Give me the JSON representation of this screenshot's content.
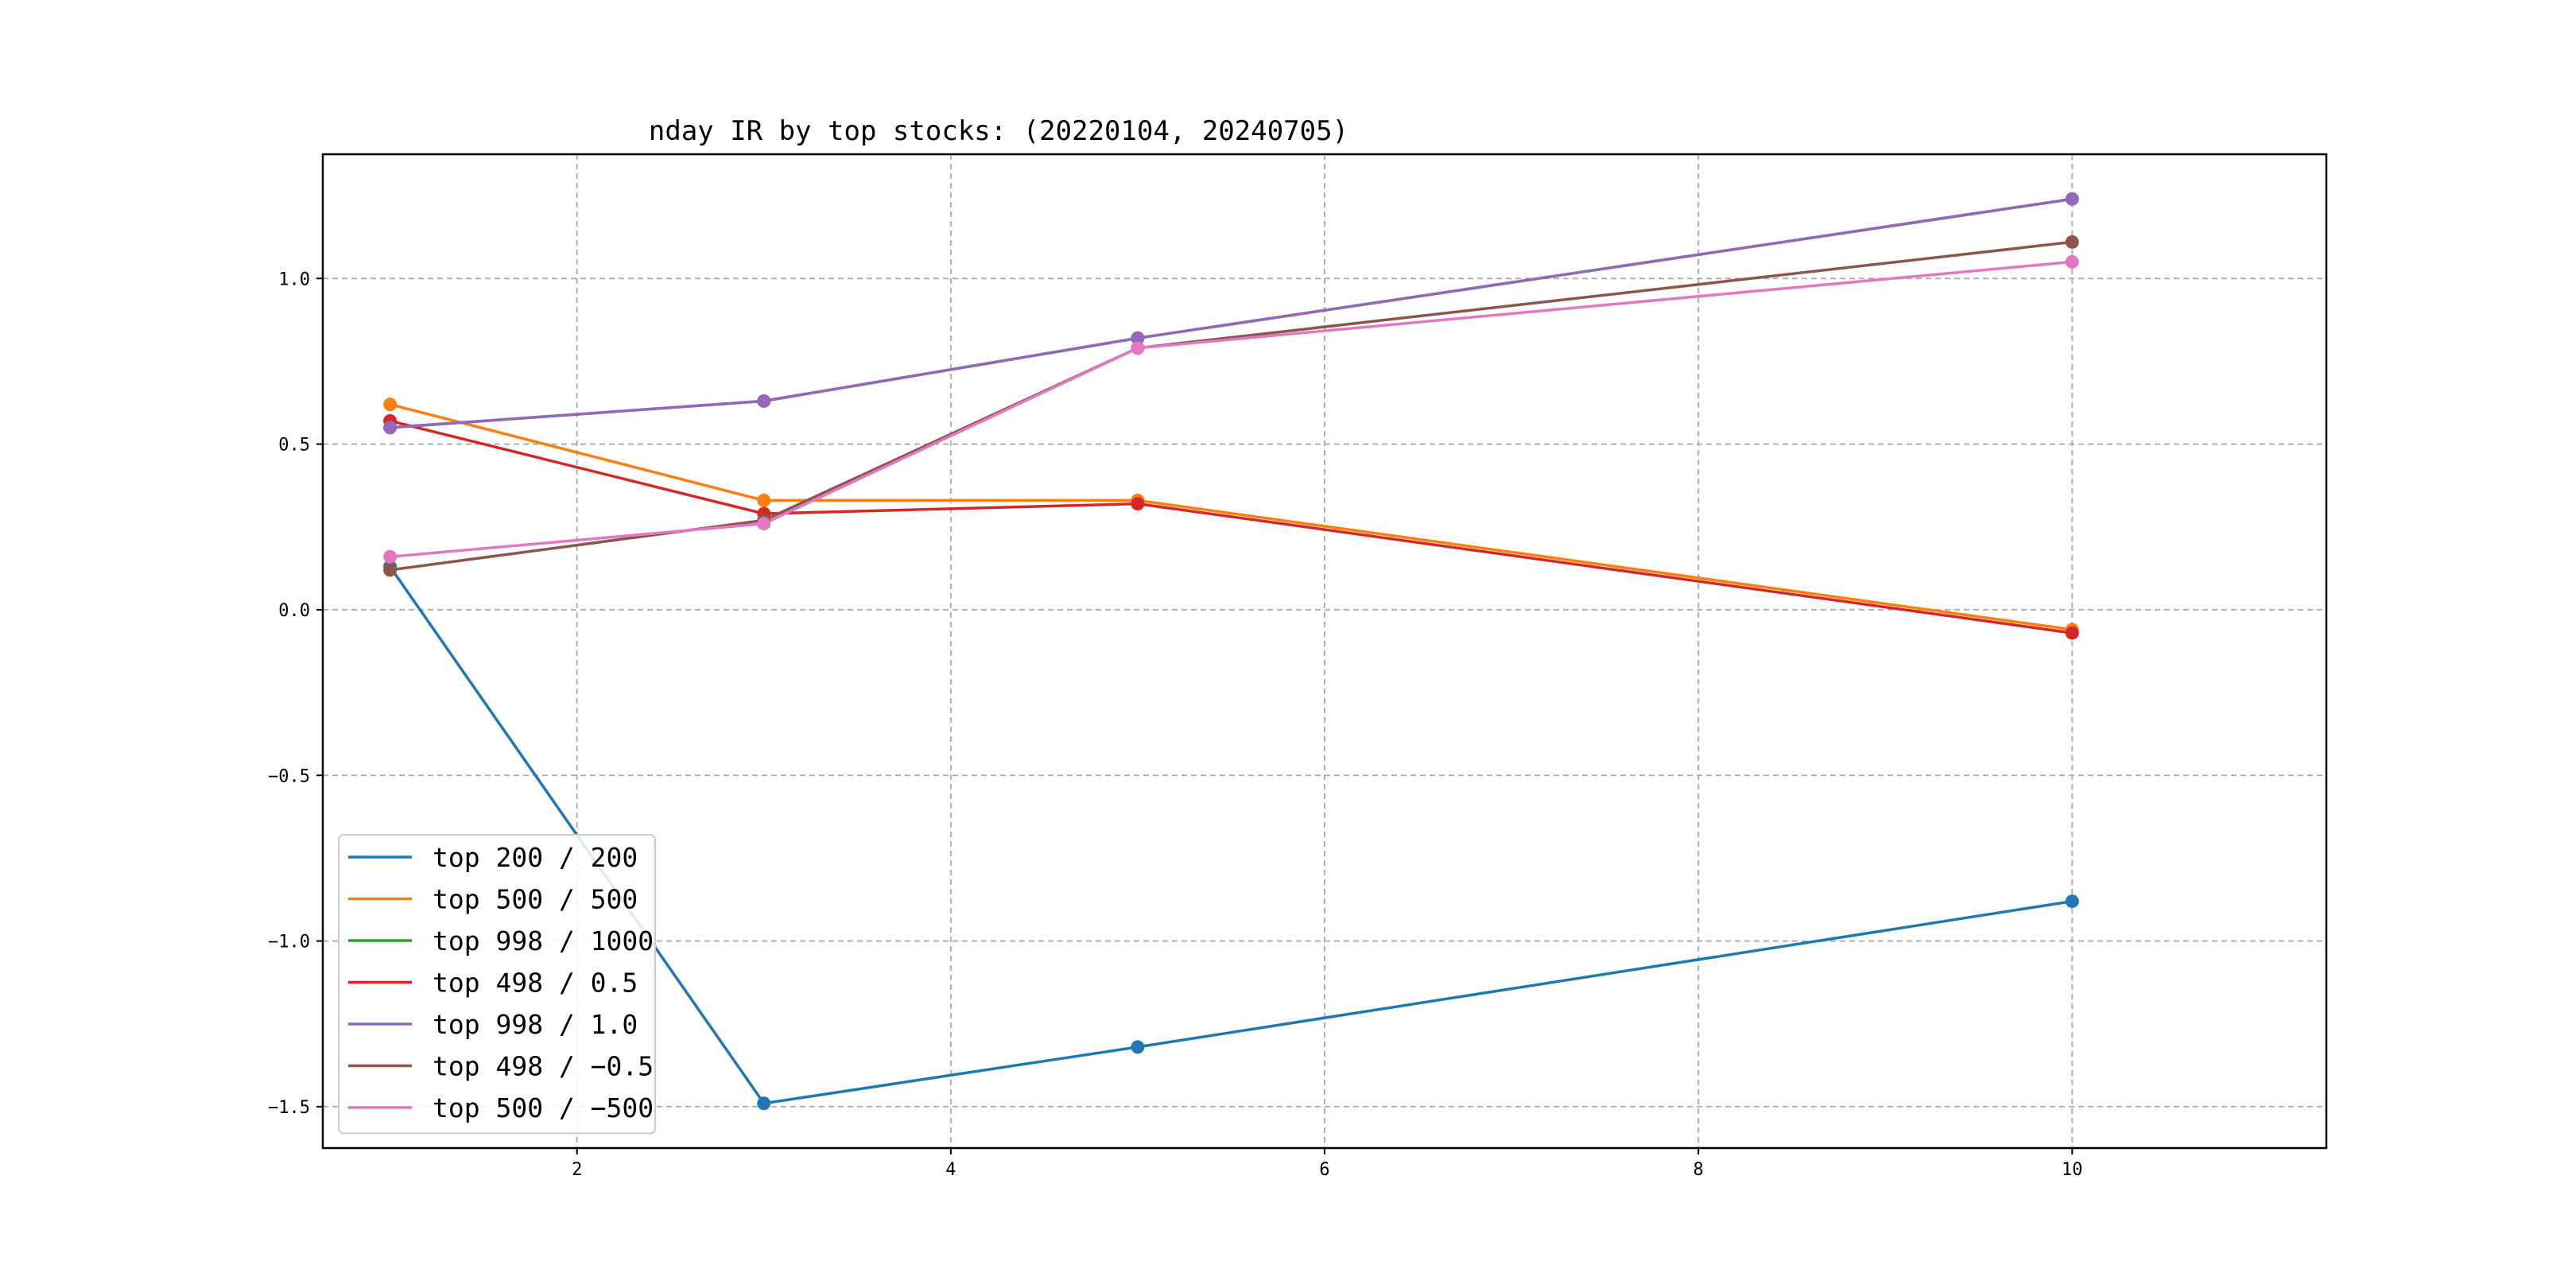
{
  "chart_data": {
    "type": "line",
    "title": "nday IR by top stocks: (20220104, 20240705)",
    "xlabel": "",
    "ylabel": "",
    "xlim": [
      0.64,
      11.36
    ],
    "ylim": [
      -1.625,
      1.375
    ],
    "xticks": [
      2,
      4,
      6,
      8,
      10
    ],
    "yticks": [
      -1.5,
      -1.0,
      -0.5,
      0.0,
      0.5,
      1.0
    ],
    "xtick_labels": [
      "2",
      "4",
      "6",
      "8",
      "10"
    ],
    "ytick_labels": [
      "−1.5",
      "−1.0",
      "−0.5",
      "0.0",
      "0.5",
      "1.0"
    ],
    "grid": true,
    "legend_position": "lower-left",
    "x": [
      1,
      3,
      5,
      10
    ],
    "series": [
      {
        "name": "top 200 / 200",
        "color": "#1f77b4",
        "values": [
          0.13,
          -1.49,
          -1.32,
          -0.88
        ]
      },
      {
        "name": "top 500 / 500",
        "color": "#ff7f0e",
        "values": [
          0.62,
          0.33,
          0.33,
          -0.06
        ]
      },
      {
        "name": "top 998 / 1000",
        "color": "#2ca02c",
        "values": [
          0.55,
          0.63,
          0.82,
          1.24
        ]
      },
      {
        "name": "top 498 / 0.5",
        "color": "#d62728",
        "values": [
          0.57,
          0.29,
          0.32,
          -0.07
        ]
      },
      {
        "name": "top 998 / 1.0",
        "color": "#9467bd",
        "values": [
          0.55,
          0.63,
          0.82,
          1.24
        ]
      },
      {
        "name": "top 498 / −0.5",
        "color": "#8c564b",
        "values": [
          0.12,
          0.27,
          0.79,
          1.11
        ]
      },
      {
        "name": "top 500 / −500",
        "color": "#e377c2",
        "values": [
          0.16,
          0.26,
          0.79,
          1.05
        ]
      }
    ]
  }
}
